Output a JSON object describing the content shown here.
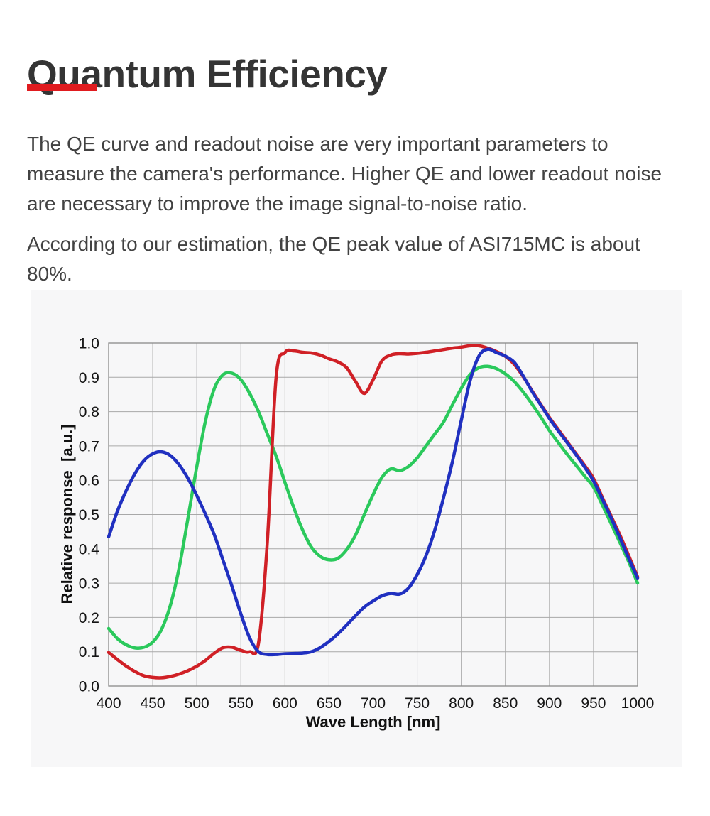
{
  "page": {
    "title": "Quantum Efficiency",
    "accent_color": "#e01b1f",
    "paragraph1": "The QE curve and readout noise are very important parameters to measure the camera's performance. Higher QE and lower readout noise are necessary to improve the image signal-to-noise ratio.",
    "paragraph2": "According to our estimation, the QE peak value of ASI715MC is about 80%."
  },
  "chart_data": {
    "type": "line",
    "title": "",
    "xlabel": "Wave Length [nm]",
    "ylabel": "Relative response  [a.u.]",
    "xlim": [
      400,
      1000
    ],
    "ylim": [
      0.0,
      1.0
    ],
    "x_ticks": [
      "400",
      "450",
      "500",
      "550",
      "600",
      "650",
      "700",
      "750",
      "800",
      "850",
      "900",
      "950",
      "1000"
    ],
    "y_ticks": [
      "0.0",
      "0.1",
      "0.2",
      "0.3",
      "0.4",
      "0.5",
      "0.6",
      "0.7",
      "0.8",
      "0.9",
      "1.0"
    ],
    "grid": true,
    "legend_position": "none",
    "background": "#f7f7f8",
    "grid_color": "#a8a8a8",
    "border_color": "#8a8a8a",
    "x": [
      400,
      410,
      420,
      430,
      440,
      450,
      460,
      470,
      480,
      490,
      500,
      510,
      520,
      530,
      540,
      550,
      560,
      570,
      580,
      590,
      600,
      610,
      620,
      630,
      640,
      650,
      660,
      670,
      680,
      690,
      700,
      710,
      720,
      730,
      740,
      750,
      760,
      770,
      780,
      790,
      800,
      810,
      820,
      830,
      840,
      850,
      860,
      870,
      880,
      890,
      900,
      910,
      920,
      930,
      940,
      950,
      960,
      970,
      980,
      990,
      1000
    ],
    "series": [
      {
        "name": "green-channel",
        "color": "#2bc95c",
        "values": [
          0.168,
          0.138,
          0.12,
          0.111,
          0.113,
          0.128,
          0.165,
          0.235,
          0.345,
          0.49,
          0.64,
          0.775,
          0.868,
          0.908,
          0.912,
          0.893,
          0.853,
          0.8,
          0.735,
          0.67,
          0.594,
          0.52,
          0.455,
          0.405,
          0.378,
          0.368,
          0.372,
          0.398,
          0.44,
          0.5,
          0.558,
          0.608,
          0.633,
          0.628,
          0.64,
          0.665,
          0.7,
          0.735,
          0.77,
          0.82,
          0.868,
          0.908,
          0.928,
          0.932,
          0.925,
          0.91,
          0.888,
          0.858,
          0.823,
          0.785,
          0.745,
          0.71,
          0.676,
          0.644,
          0.612,
          0.58,
          0.528,
          0.473,
          0.418,
          0.362,
          0.3
        ]
      },
      {
        "name": "red-channel",
        "color": "#d02026",
        "values": [
          0.098,
          0.077,
          0.058,
          0.042,
          0.03,
          0.025,
          0.024,
          0.028,
          0.035,
          0.045,
          0.058,
          0.075,
          0.096,
          0.112,
          0.113,
          0.104,
          0.1,
          0.125,
          0.42,
          0.9,
          0.972,
          0.977,
          0.973,
          0.971,
          0.965,
          0.954,
          0.945,
          0.928,
          0.888,
          0.853,
          0.893,
          0.948,
          0.965,
          0.969,
          0.968,
          0.97,
          0.973,
          0.977,
          0.981,
          0.985,
          0.988,
          0.992,
          0.992,
          0.985,
          0.975,
          0.961,
          0.938,
          0.903,
          0.862,
          0.822,
          0.783,
          0.748,
          0.713,
          0.678,
          0.643,
          0.605,
          0.55,
          0.495,
          0.44,
          0.38,
          0.318
        ]
      },
      {
        "name": "blue-channel",
        "color": "#2030c0",
        "values": [
          0.435,
          0.51,
          0.57,
          0.62,
          0.657,
          0.677,
          0.683,
          0.672,
          0.645,
          0.605,
          0.555,
          0.5,
          0.44,
          0.365,
          0.29,
          0.21,
          0.14,
          0.1,
          0.092,
          0.092,
          0.094,
          0.095,
          0.096,
          0.1,
          0.112,
          0.13,
          0.152,
          0.178,
          0.205,
          0.23,
          0.248,
          0.263,
          0.27,
          0.268,
          0.285,
          0.325,
          0.38,
          0.455,
          0.55,
          0.655,
          0.775,
          0.89,
          0.962,
          0.982,
          0.972,
          0.962,
          0.944,
          0.905,
          0.86,
          0.82,
          0.78,
          0.744,
          0.71,
          0.675,
          0.638,
          0.598,
          0.545,
          0.49,
          0.432,
          0.372,
          0.315
        ]
      }
    ]
  }
}
